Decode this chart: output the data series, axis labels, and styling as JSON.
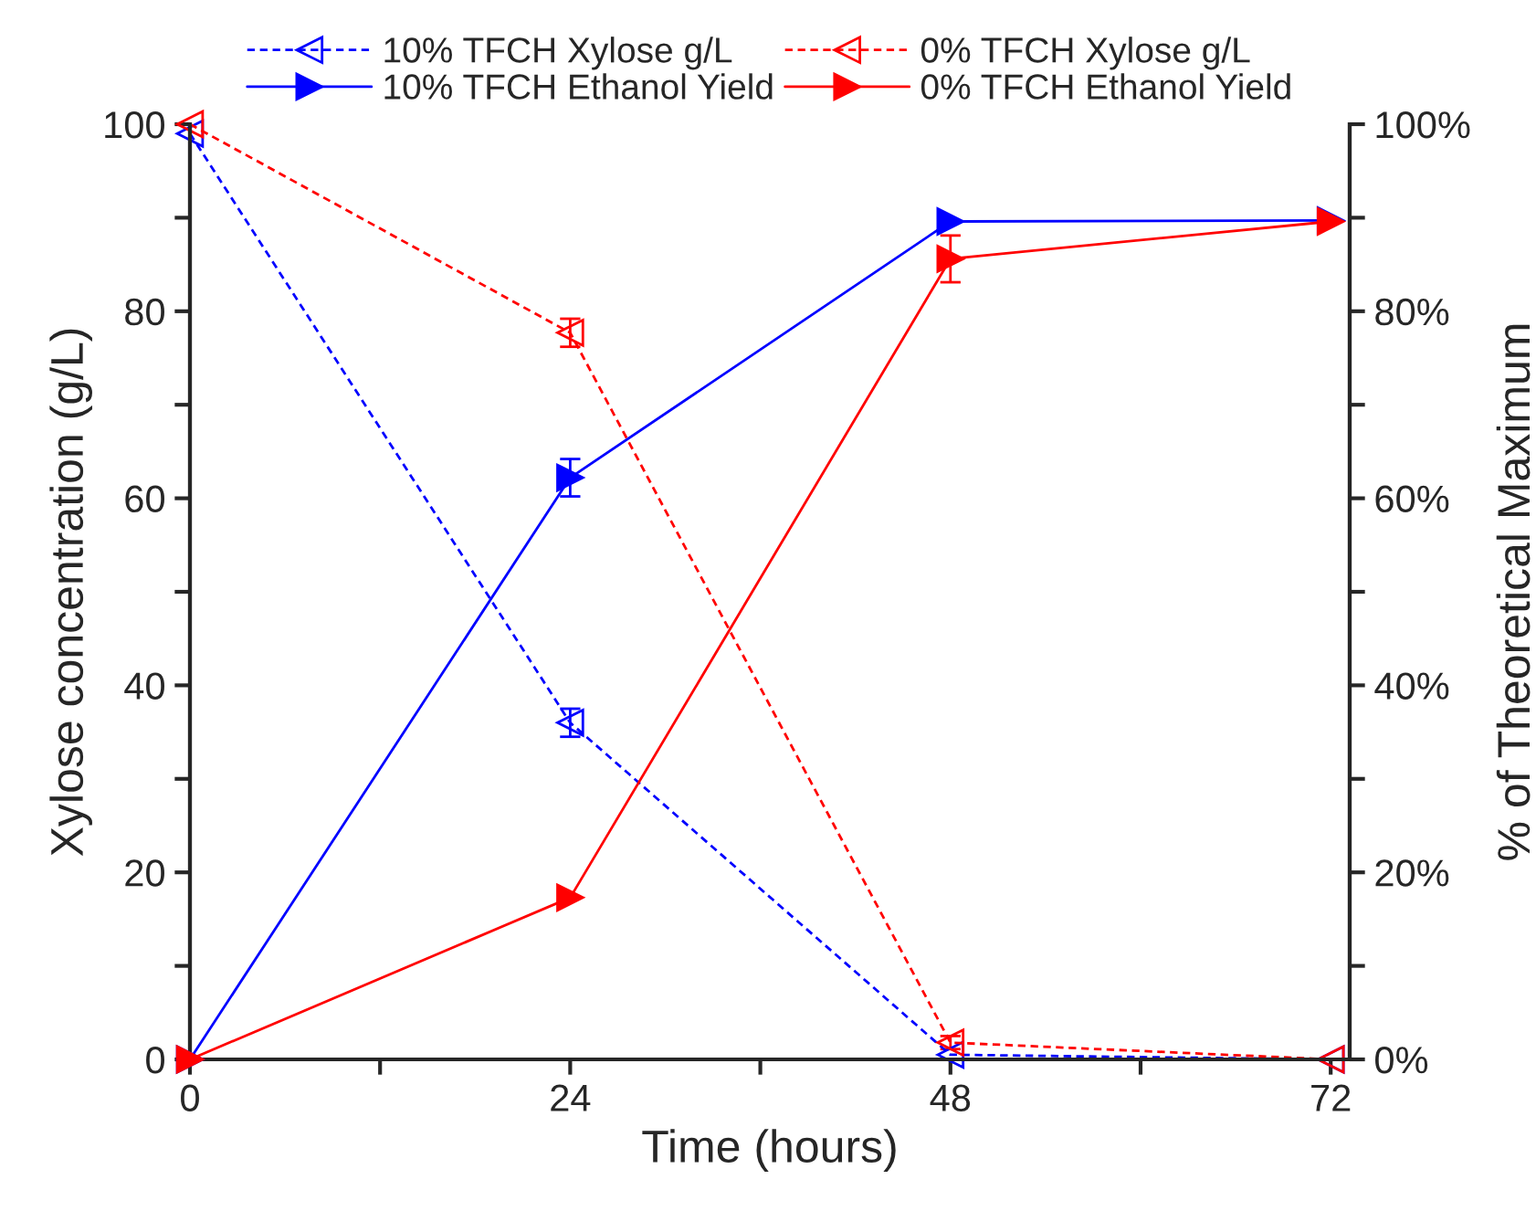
{
  "chart_data": {
    "type": "line",
    "xlabel": "Time (hours)",
    "ylabel": "Xylose concentration (g/L)",
    "y2label": "% of Theoretical Maximum",
    "x": [
      0,
      24,
      48,
      72
    ],
    "xlim": [
      0,
      73.2
    ],
    "xticks": [
      0,
      {
        "value": 12,
        "label": null
      },
      24,
      {
        "value": 36,
        "label": null
      },
      48,
      {
        "value": 60,
        "label": null
      },
      72
    ],
    "ylim": [
      0,
      100
    ],
    "yticks": [
      0,
      {
        "value": 10,
        "label": null
      },
      20,
      {
        "value": 30,
        "label": null
      },
      40,
      {
        "value": 50,
        "label": null
      },
      60,
      {
        "value": 70,
        "label": null
      },
      80,
      {
        "value": 90,
        "label": null
      },
      100
    ],
    "y2lim": [
      0,
      100
    ],
    "y2ticks": [
      {
        "value": 0,
        "label": "0%"
      },
      {
        "value": 10,
        "label": null
      },
      {
        "value": 20,
        "label": "20%"
      },
      {
        "value": 30,
        "label": null
      },
      {
        "value": 40,
        "label": "40%"
      },
      {
        "value": 50,
        "label": null
      },
      {
        "value": 60,
        "label": "60%"
      },
      {
        "value": 70,
        "label": null
      },
      {
        "value": 80,
        "label": "80%"
      },
      {
        "value": 90,
        "label": null
      },
      {
        "value": 100,
        "label": "100%"
      }
    ],
    "legend": "top",
    "grid": false,
    "marker": "triangle",
    "series": [
      {
        "name": "10% TFCH Xylose g/L",
        "color": "#0000ff",
        "axis": "y",
        "line_style": "dashed",
        "values": [
          99,
          36,
          0.5,
          0
        ],
        "errors": [
          null,
          1.5,
          null,
          null
        ]
      },
      {
        "name": "0% TFCH Xylose g/L",
        "color": "#ff0000",
        "axis": "y",
        "line_style": "dashed",
        "values": [
          100,
          77.7,
          1.8,
          0
        ],
        "errors": [
          null,
          1.5,
          0.7,
          null
        ]
      },
      {
        "name": "10% TFCH Ethanol Yield",
        "color": "#0000ff",
        "axis": "y2",
        "line_style": "solid",
        "values": [
          0,
          62.2,
          89.6,
          89.7
        ],
        "errors": [
          null,
          2,
          null,
          null
        ]
      },
      {
        "name": "0% TFCH Ethanol Yield",
        "color": "#ff0000",
        "axis": "y2",
        "line_style": "solid",
        "values": [
          0,
          17.3,
          85.6,
          89.6
        ],
        "errors": [
          null,
          null,
          2.5,
          null
        ]
      }
    ]
  }
}
